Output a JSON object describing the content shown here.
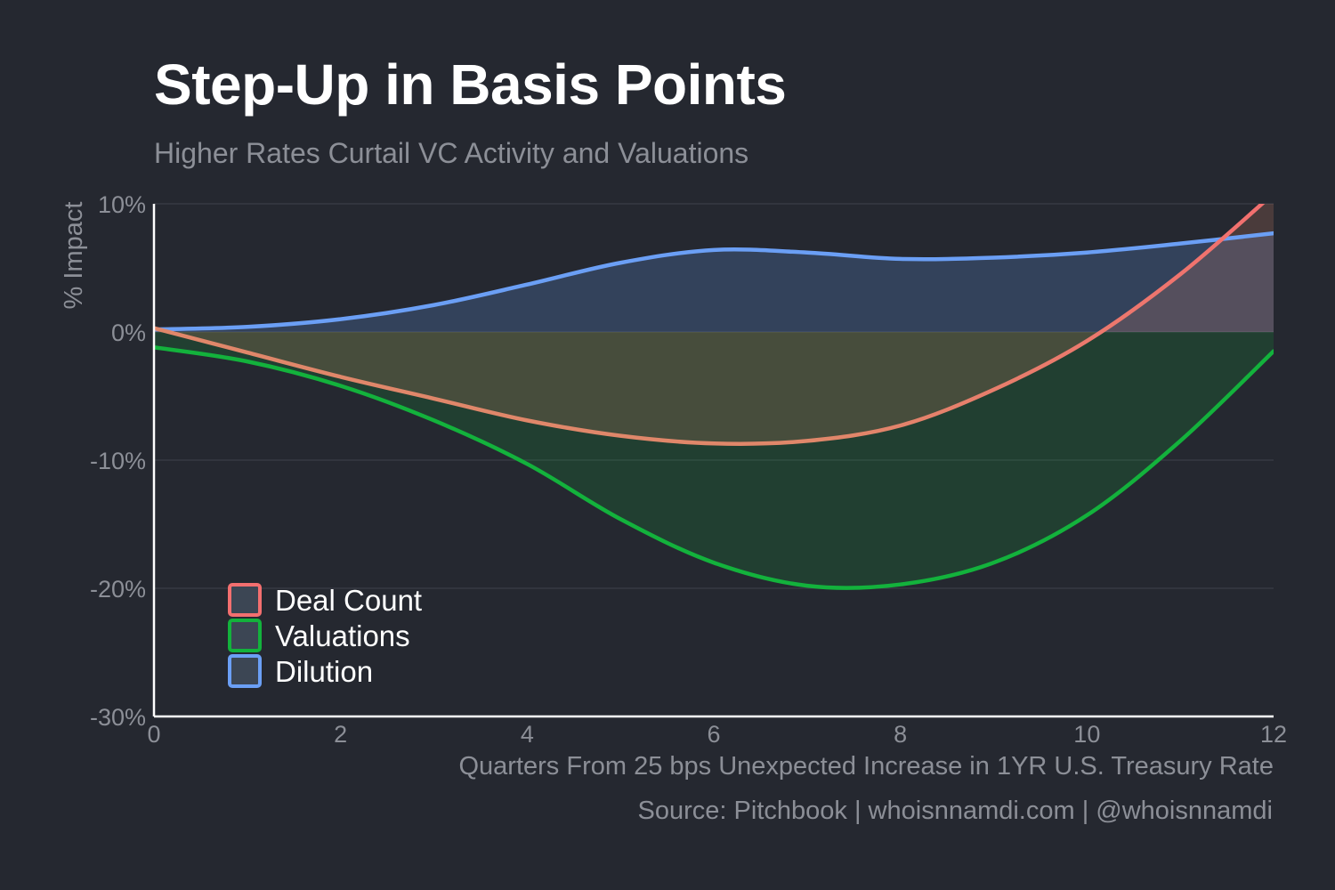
{
  "title": "Step-Up in Basis Points",
  "subtitle": "Higher Rates Curtail VC Activity and Valuations",
  "source": "Source: Pitchbook | whoisnnamdi.com | @whoisnnamdi",
  "colors": {
    "background": "#252830",
    "deal_count_start": "#e0876a",
    "deal_count_end": "#f36f6f",
    "valuations": "#13b23c",
    "dilution": "#6b9ff5",
    "axis_text": "#8c8f97"
  },
  "chart_data": {
    "type": "area",
    "title": "Step-Up in Basis Points",
    "subtitle": "Higher Rates Curtail VC Activity and Valuations",
    "xlabel": "Quarters From 25 bps Unexpected Increase in 1YR U.S. Treasury Rate",
    "ylabel": "% Impact",
    "xlim": [
      0,
      12
    ],
    "ylim": [
      -30,
      10
    ],
    "x_ticks": [
      0,
      2,
      4,
      6,
      8,
      10,
      12
    ],
    "x_tick_labels": [
      "0",
      "2",
      "4",
      "6",
      "8",
      "10",
      "12"
    ],
    "y_ticks": [
      10,
      0,
      -10,
      -20,
      -30
    ],
    "y_tick_labels": [
      "10%",
      "0%",
      "-10%",
      "-20%",
      "-30%"
    ],
    "grid": "horizontal",
    "legend_position": "bottom-left",
    "series": [
      {
        "name": "Deal Count",
        "x": [
          0,
          1,
          2,
          3,
          4,
          5,
          6,
          7,
          8,
          9,
          10,
          11,
          12
        ],
        "values": [
          0.3,
          -1.6,
          -3.5,
          -5.2,
          -6.9,
          -8.1,
          -8.7,
          -8.5,
          -7.3,
          -4.5,
          -0.7,
          4.5,
          10.8
        ]
      },
      {
        "name": "Valuations",
        "x": [
          0,
          1,
          2,
          3,
          4,
          5,
          6,
          7,
          8,
          9,
          10,
          11,
          12
        ],
        "values": [
          -1.2,
          -2.3,
          -4.2,
          -6.9,
          -10.3,
          -14.6,
          -18.0,
          -19.8,
          -19.7,
          -18.0,
          -14.3,
          -8.5,
          -1.5
        ]
      },
      {
        "name": "Dilution",
        "x": [
          0,
          1,
          2,
          3,
          4,
          5,
          6,
          7,
          8,
          9,
          10,
          11,
          12
        ],
        "values": [
          0.2,
          0.4,
          1.0,
          2.1,
          3.7,
          5.4,
          6.4,
          6.2,
          5.7,
          5.8,
          6.2,
          6.9,
          7.7
        ]
      }
    ]
  }
}
